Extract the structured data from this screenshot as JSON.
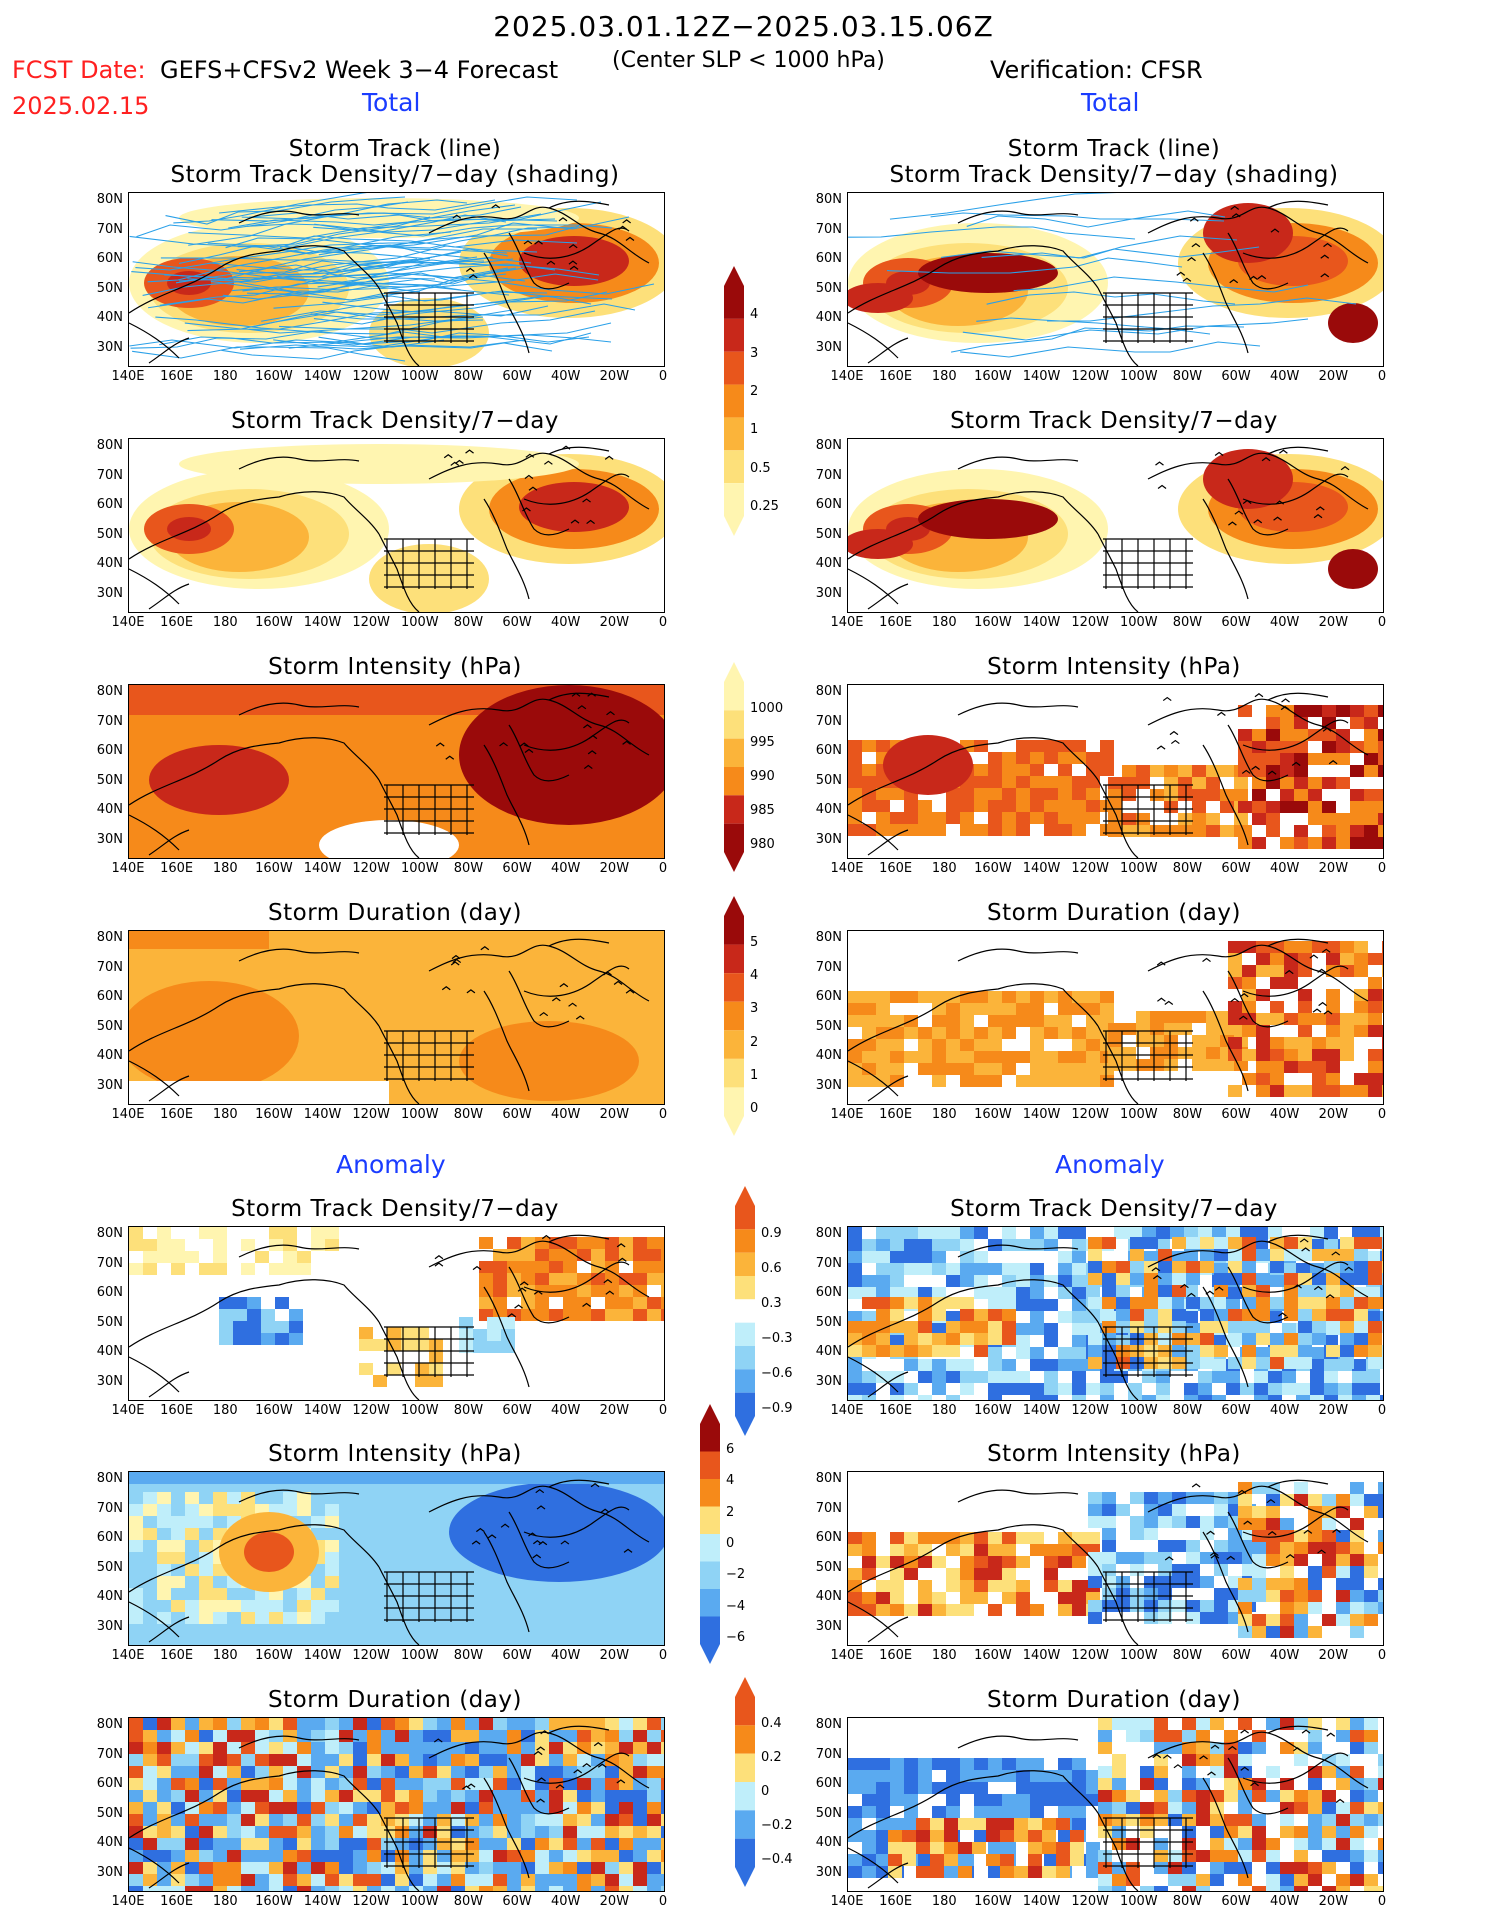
{
  "header": {
    "period": "2025.03.01.12Z−2025.03.15.06Z",
    "fcst_label": "FCST Date:",
    "fcst_date": "2025.02.15",
    "model": "GEFS+CFSv2 Week 3−4 Forecast",
    "subtitle": "(Center SLP < 1000 hPa)",
    "verification": "Verification: CFSR"
  },
  "sections": {
    "total": "Total",
    "anomaly": "Anomaly"
  },
  "panel_titles": {
    "track_line": "Storm Track (line)",
    "track_shading": "Storm Track Density/7−day (shading)",
    "density": "Storm Track Density/7−day",
    "intensity": "Storm Intensity (hPa)",
    "duration": "Storm Duration (day)"
  },
  "axes": {
    "lat_ticks": [
      "80N",
      "70N",
      "60N",
      "50N",
      "40N",
      "30N"
    ],
    "lon_ticks": [
      "140E",
      "160E",
      "180",
      "160W",
      "140W",
      "120W",
      "100W",
      "80W",
      "60W",
      "40W",
      "20W",
      "0"
    ]
  },
  "colorbars": {
    "density_total": [
      "4",
      "3",
      "2",
      "1",
      "0.5",
      "0.25"
    ],
    "intensity_total": [
      "1000",
      "995",
      "990",
      "985",
      "980"
    ],
    "duration_total": [
      "5",
      "4",
      "3",
      "2",
      "1",
      "0"
    ],
    "density_anom": [
      "0.9",
      "0.6",
      "0.3",
      "−0.3",
      "−0.6",
      "−0.9"
    ],
    "intensity_anom": [
      "6",
      "4",
      "2",
      "0",
      "−2",
      "−4",
      "−6"
    ],
    "duration_anom": [
      "0.4",
      "0.2",
      "0",
      "−0.2",
      "−0.4"
    ]
  },
  "colors": {
    "warm": [
      "#fff5b0",
      "#fde07a",
      "#fbb43a",
      "#f68a1a",
      "#e8561c",
      "#c8281a",
      "#9a0a0a"
    ],
    "cool": [
      "#bfeefa",
      "#8fd3f5",
      "#5aaaf0",
      "#2f6fe0"
    ],
    "track_line": "#2aa0e8"
  }
}
